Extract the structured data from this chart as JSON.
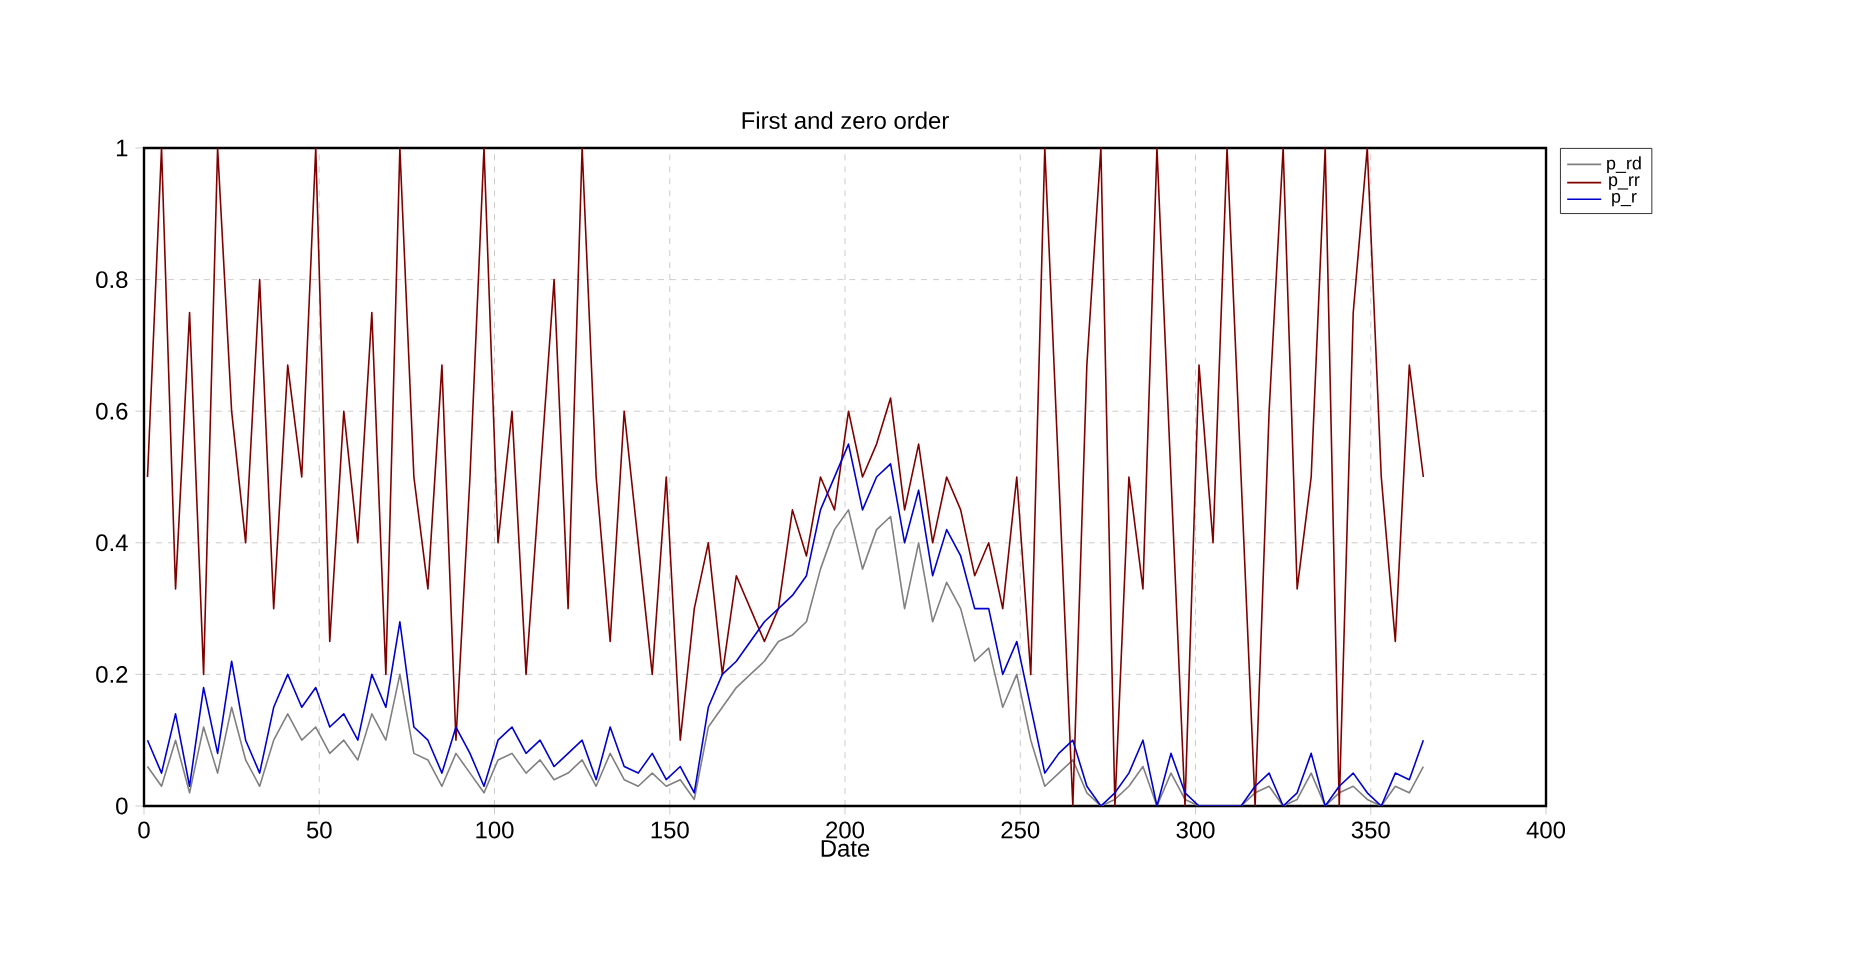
{
  "chart_data": {
    "type": "line",
    "title": "First and zero order",
    "xlabel": "Date",
    "x": [
      1,
      5,
      9,
      13,
      17,
      21,
      25,
      29,
      33,
      37,
      41,
      45,
      49,
      53,
      57,
      61,
      65,
      69,
      73,
      77,
      81,
      85,
      89,
      93,
      97,
      101,
      105,
      109,
      113,
      117,
      121,
      125,
      129,
      133,
      137,
      141,
      145,
      149,
      153,
      157,
      161,
      165,
      169,
      173,
      177,
      181,
      185,
      189,
      193,
      197,
      201,
      205,
      209,
      213,
      217,
      221,
      225,
      229,
      233,
      237,
      241,
      245,
      249,
      253,
      257,
      261,
      265,
      269,
      273,
      277,
      281,
      285,
      289,
      293,
      297,
      301,
      305,
      309,
      313,
      317,
      321,
      325,
      329,
      333,
      337,
      341,
      345,
      349,
      353,
      357,
      361,
      365
    ],
    "series": [
      {
        "name": "p_rd",
        "color": "#808080",
        "values": [
          0.06,
          0.03,
          0.1,
          0.02,
          0.12,
          0.05,
          0.15,
          0.07,
          0.03,
          0.1,
          0.14,
          0.1,
          0.12,
          0.08,
          0.1,
          0.07,
          0.14,
          0.1,
          0.2,
          0.08,
          0.07,
          0.03,
          0.08,
          0.05,
          0.02,
          0.07,
          0.08,
          0.05,
          0.07,
          0.04,
          0.05,
          0.07,
          0.03,
          0.08,
          0.04,
          0.03,
          0.05,
          0.03,
          0.04,
          0.01,
          0.12,
          0.15,
          0.18,
          0.2,
          0.22,
          0.25,
          0.26,
          0.28,
          0.36,
          0.42,
          0.45,
          0.36,
          0.42,
          0.44,
          0.3,
          0.4,
          0.28,
          0.34,
          0.3,
          0.22,
          0.24,
          0.15,
          0.2,
          0.1,
          0.03,
          0.05,
          0.07,
          0.02,
          0,
          0.01,
          0.03,
          0.06,
          0,
          0.05,
          0.01,
          0,
          0,
          0,
          0,
          0.02,
          0.03,
          0,
          0.01,
          0.05,
          0,
          0.02,
          0.03,
          0.01,
          0,
          0.03,
          0.02,
          0.06
        ]
      },
      {
        "name": "p_rr",
        "color": "#800000",
        "values": [
          0.5,
          1,
          0.33,
          0.75,
          0.2,
          1,
          0.6,
          0.4,
          0.8,
          0.3,
          0.67,
          0.5,
          1,
          0.25,
          0.6,
          0.4,
          0.75,
          0.2,
          1,
          0.5,
          0.33,
          0.67,
          0.1,
          0.5,
          1,
          0.4,
          0.6,
          0.2,
          0.5,
          0.8,
          0.3,
          1,
          0.5,
          0.25,
          0.6,
          0.4,
          0.2,
          0.5,
          0.1,
          0.3,
          0.4,
          0.2,
          0.35,
          0.3,
          0.25,
          0.3,
          0.45,
          0.38,
          0.5,
          0.45,
          0.6,
          0.5,
          0.55,
          0.62,
          0.45,
          0.55,
          0.4,
          0.5,
          0.45,
          0.35,
          0.4,
          0.3,
          0.5,
          0.2,
          1,
          0.5,
          0,
          0.67,
          1,
          0,
          0.5,
          0.33,
          1,
          0.5,
          0,
          0.67,
          0.4,
          1,
          0.5,
          0,
          0.6,
          1,
          0.33,
          0.5,
          1,
          0,
          0.75,
          1,
          0.5,
          0.25,
          0.67,
          0.5
        ]
      },
      {
        "name": "p_r",
        "color": "#0000cc",
        "values": [
          0.1,
          0.05,
          0.14,
          0.03,
          0.18,
          0.08,
          0.22,
          0.1,
          0.05,
          0.15,
          0.2,
          0.15,
          0.18,
          0.12,
          0.14,
          0.1,
          0.2,
          0.15,
          0.28,
          0.12,
          0.1,
          0.05,
          0.12,
          0.08,
          0.03,
          0.1,
          0.12,
          0.08,
          0.1,
          0.06,
          0.08,
          0.1,
          0.04,
          0.12,
          0.06,
          0.05,
          0.08,
          0.04,
          0.06,
          0.02,
          0.15,
          0.2,
          0.22,
          0.25,
          0.28,
          0.3,
          0.32,
          0.35,
          0.45,
          0.5,
          0.55,
          0.45,
          0.5,
          0.52,
          0.4,
          0.48,
          0.35,
          0.42,
          0.38,
          0.3,
          0.3,
          0.2,
          0.25,
          0.15,
          0.05,
          0.08,
          0.1,
          0.03,
          0,
          0.02,
          0.05,
          0.1,
          0,
          0.08,
          0.02,
          0,
          0,
          0,
          0,
          0.03,
          0.05,
          0,
          0.02,
          0.08,
          0,
          0.03,
          0.05,
          0.02,
          0,
          0.05,
          0.04,
          0.1
        ]
      }
    ],
    "xlim": [
      0,
      400
    ],
    "xticks": [
      0,
      50,
      100,
      150,
      200,
      250,
      300,
      350,
      400
    ],
    "ylim": [
      0,
      1
    ],
    "yticks": [
      0,
      0.2,
      0.4,
      0.6,
      0.8,
      1
    ],
    "grid": true,
    "legend": "top right",
    "marker": "none",
    "line_style": "solid"
  }
}
